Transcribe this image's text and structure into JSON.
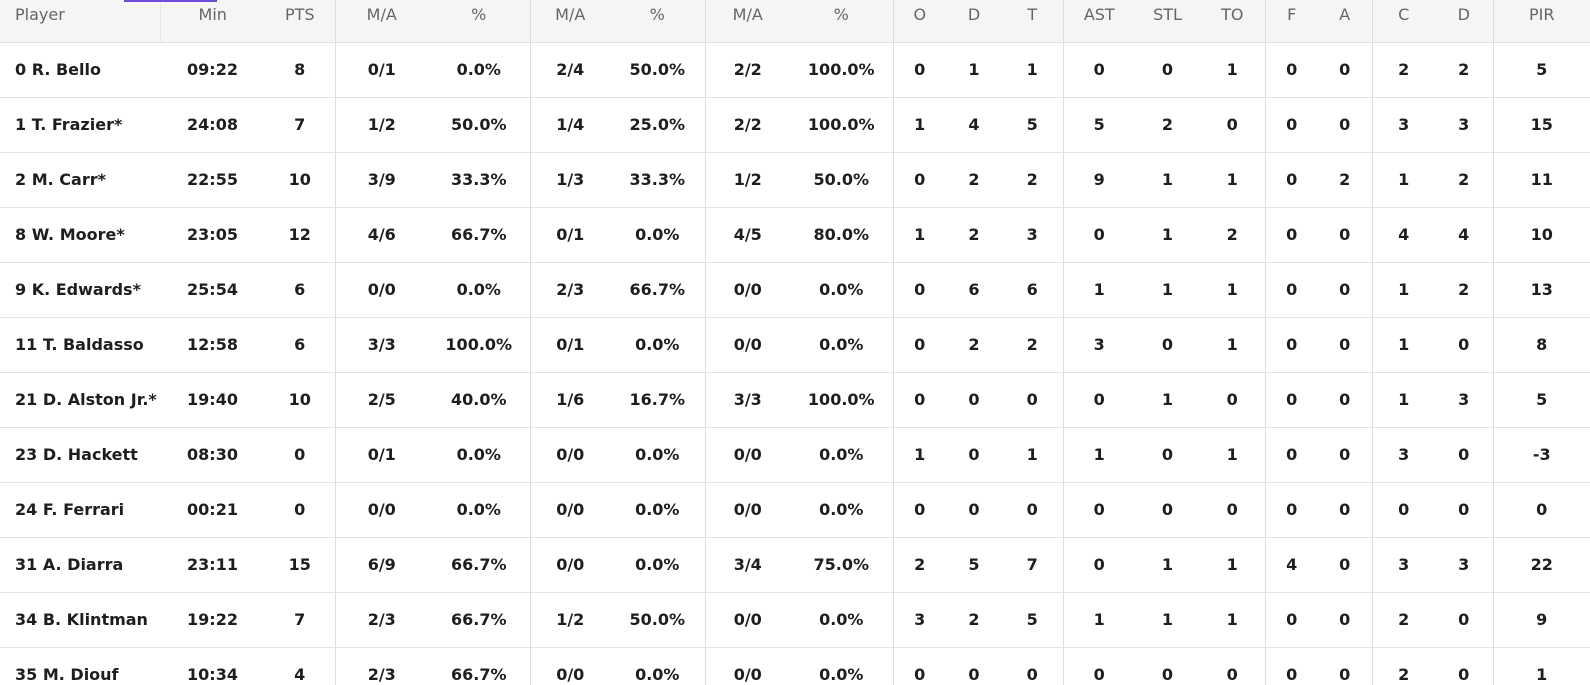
{
  "table": {
    "header": [
      "Player",
      "Min",
      "PTS",
      "M/A",
      "%",
      "M/A",
      "%",
      "M/A",
      "%",
      "O",
      "D",
      "T",
      "AST",
      "STL",
      "TO",
      "F",
      "A",
      "C",
      "D",
      "PIR"
    ],
    "rows": [
      [
        "0 R. Bello",
        "09:22",
        "8",
        "0/1",
        "0.0%",
        "2/4",
        "50.0%",
        "2/2",
        "100.0%",
        "0",
        "1",
        "1",
        "0",
        "0",
        "1",
        "0",
        "0",
        "2",
        "2",
        "5"
      ],
      [
        "1 T. Frazier*",
        "24:08",
        "7",
        "1/2",
        "50.0%",
        "1/4",
        "25.0%",
        "2/2",
        "100.0%",
        "1",
        "4",
        "5",
        "5",
        "2",
        "0",
        "0",
        "0",
        "3",
        "3",
        "15"
      ],
      [
        "2 M. Carr*",
        "22:55",
        "10",
        "3/9",
        "33.3%",
        "1/3",
        "33.3%",
        "1/2",
        "50.0%",
        "0",
        "2",
        "2",
        "9",
        "1",
        "1",
        "0",
        "2",
        "1",
        "2",
        "11"
      ],
      [
        "8 W. Moore*",
        "23:05",
        "12",
        "4/6",
        "66.7%",
        "0/1",
        "0.0%",
        "4/5",
        "80.0%",
        "1",
        "2",
        "3",
        "0",
        "1",
        "2",
        "0",
        "0",
        "4",
        "4",
        "10"
      ],
      [
        "9 K. Edwards*",
        "25:54",
        "6",
        "0/0",
        "0.0%",
        "2/3",
        "66.7%",
        "0/0",
        "0.0%",
        "0",
        "6",
        "6",
        "1",
        "1",
        "1",
        "0",
        "0",
        "1",
        "2",
        "13"
      ],
      [
        "11 T. Baldasso",
        "12:58",
        "6",
        "3/3",
        "100.0%",
        "0/1",
        "0.0%",
        "0/0",
        "0.0%",
        "0",
        "2",
        "2",
        "3",
        "0",
        "1",
        "0",
        "0",
        "1",
        "0",
        "8"
      ],
      [
        "21 D. Alston Jr.*",
        "19:40",
        "10",
        "2/5",
        "40.0%",
        "1/6",
        "16.7%",
        "3/3",
        "100.0%",
        "0",
        "0",
        "0",
        "0",
        "1",
        "0",
        "0",
        "0",
        "1",
        "3",
        "5"
      ],
      [
        "23 D. Hackett",
        "08:30",
        "0",
        "0/1",
        "0.0%",
        "0/0",
        "0.0%",
        "0/0",
        "0.0%",
        "1",
        "0",
        "1",
        "1",
        "0",
        "1",
        "0",
        "0",
        "3",
        "0",
        "-3"
      ],
      [
        "24 F. Ferrari",
        "00:21",
        "0",
        "0/0",
        "0.0%",
        "0/0",
        "0.0%",
        "0/0",
        "0.0%",
        "0",
        "0",
        "0",
        "0",
        "0",
        "0",
        "0",
        "0",
        "0",
        "0",
        "0"
      ],
      [
        "31 A. Diarra",
        "23:11",
        "15",
        "6/9",
        "66.7%",
        "0/0",
        "0.0%",
        "3/4",
        "75.0%",
        "2",
        "5",
        "7",
        "0",
        "1",
        "1",
        "4",
        "0",
        "3",
        "3",
        "22"
      ],
      [
        "34 B. Klintman",
        "19:22",
        "7",
        "2/3",
        "66.7%",
        "1/2",
        "50.0%",
        "0/0",
        "0.0%",
        "3",
        "2",
        "5",
        "1",
        "1",
        "1",
        "0",
        "0",
        "2",
        "0",
        "9"
      ],
      [
        "35 M. Diouf",
        "10:34",
        "4",
        "2/3",
        "66.7%",
        "0/0",
        "0.0%",
        "0/0",
        "0.0%",
        "0",
        "0",
        "0",
        "0",
        "0",
        "0",
        "0",
        "0",
        "2",
        "0",
        "1"
      ]
    ]
  }
}
